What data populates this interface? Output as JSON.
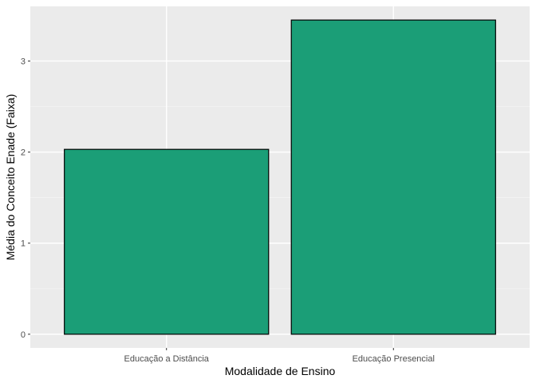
{
  "chart_data": {
    "type": "bar",
    "title": "",
    "xlabel": "Modalidade de Ensino",
    "ylabel": "Média do Conceito Enade (Faixa)",
    "categories": [
      "Educação a Distância",
      "Educação Presencial"
    ],
    "values": [
      2.03,
      3.45
    ],
    "ylim": [
      -0.15,
      3.6
    ],
    "yticks": [
      0,
      1,
      2,
      3
    ],
    "grid": true,
    "legend": "none",
    "bar_color": "#1B9E77",
    "bar_outline_color": "#000000",
    "panel_background": "#EBEBEB"
  }
}
